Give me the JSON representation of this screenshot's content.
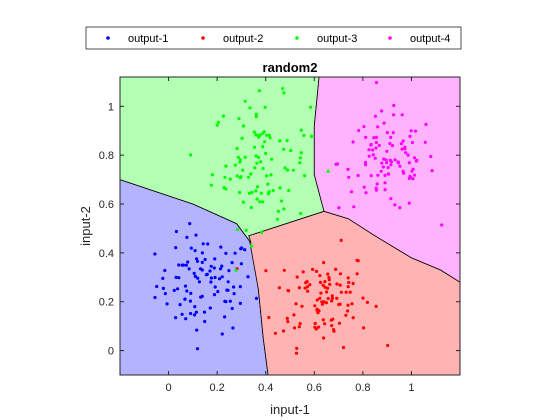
{
  "chart_data": {
    "type": "scatter",
    "title": "random2",
    "xlabel": "input-1",
    "ylabel": "input-2",
    "xlim": [
      -0.2,
      1.2
    ],
    "ylim": [
      -0.1,
      1.12
    ],
    "xticks": [
      0,
      0.2,
      0.4,
      0.6,
      0.8,
      1
    ],
    "xtick_labels": [
      "0",
      "0.2",
      "0.4",
      "0.6",
      "0.8",
      "1"
    ],
    "yticks": [
      0,
      0.2,
      0.4,
      0.6,
      0.8,
      1
    ],
    "ytick_labels": [
      "0",
      "0.2",
      "0.4",
      "0.6",
      "0.8",
      "1"
    ],
    "grid": false,
    "legend_position": "top",
    "legend_orientation": "horizontal",
    "regions": [
      {
        "name": "output-1",
        "color": "#b3b3ff",
        "polygon": [
          [
            -0.2,
            -0.1
          ],
          [
            0.41,
            -0.1
          ],
          [
            0.39,
            0.05
          ],
          [
            0.37,
            0.25
          ],
          [
            0.34,
            0.44
          ],
          [
            0.28,
            0.52
          ],
          [
            0.1,
            0.6
          ],
          [
            -0.2,
            0.7
          ]
        ]
      },
      {
        "name": "output-2",
        "color": "#ffb3b3",
        "polygon": [
          [
            0.41,
            -0.1
          ],
          [
            1.2,
            -0.1
          ],
          [
            1.2,
            0.28
          ],
          [
            1.12,
            0.33
          ],
          [
            1.0,
            0.38
          ],
          [
            0.85,
            0.47
          ],
          [
            0.74,
            0.54
          ],
          [
            0.64,
            0.57
          ],
          [
            0.33,
            0.47
          ],
          [
            0.37,
            0.25
          ],
          [
            0.39,
            0.05
          ]
        ]
      },
      {
        "name": "output-3",
        "color": "#b3ffb3",
        "polygon": [
          [
            -0.2,
            0.7
          ],
          [
            0.1,
            0.6
          ],
          [
            0.28,
            0.52
          ],
          [
            0.34,
            0.44
          ],
          [
            0.33,
            0.47
          ],
          [
            0.64,
            0.57
          ],
          [
            0.6,
            0.72
          ],
          [
            0.6,
            0.92
          ],
          [
            0.62,
            1.12
          ],
          [
            -0.2,
            1.12
          ]
        ]
      },
      {
        "name": "output-4",
        "color": "#ffb3ff",
        "polygon": [
          [
            0.62,
            1.12
          ],
          [
            0.6,
            0.92
          ],
          [
            0.6,
            0.72
          ],
          [
            0.64,
            0.57
          ],
          [
            0.74,
            0.54
          ],
          [
            0.85,
            0.47
          ],
          [
            1.0,
            0.38
          ],
          [
            1.12,
            0.33
          ],
          [
            1.2,
            0.28
          ],
          [
            1.2,
            1.12
          ]
        ]
      }
    ],
    "series": [
      {
        "name": "output-1",
        "color": "#0000ff",
        "center": [
          0.15,
          0.27
        ],
        "spread": [
          0.1,
          0.1
        ],
        "count": 100
      },
      {
        "name": "output-2",
        "color": "#ff0000",
        "center": [
          0.63,
          0.22
        ],
        "spread": [
          0.1,
          0.1
        ],
        "count": 100
      },
      {
        "name": "output-3",
        "color": "#00ff00",
        "center": [
          0.38,
          0.77
        ],
        "spread": [
          0.1,
          0.13
        ],
        "count": 100
      },
      {
        "name": "output-4",
        "color": "#ff00ff",
        "center": [
          0.9,
          0.77
        ],
        "spread": [
          0.1,
          0.1
        ],
        "count": 100
      }
    ]
  }
}
